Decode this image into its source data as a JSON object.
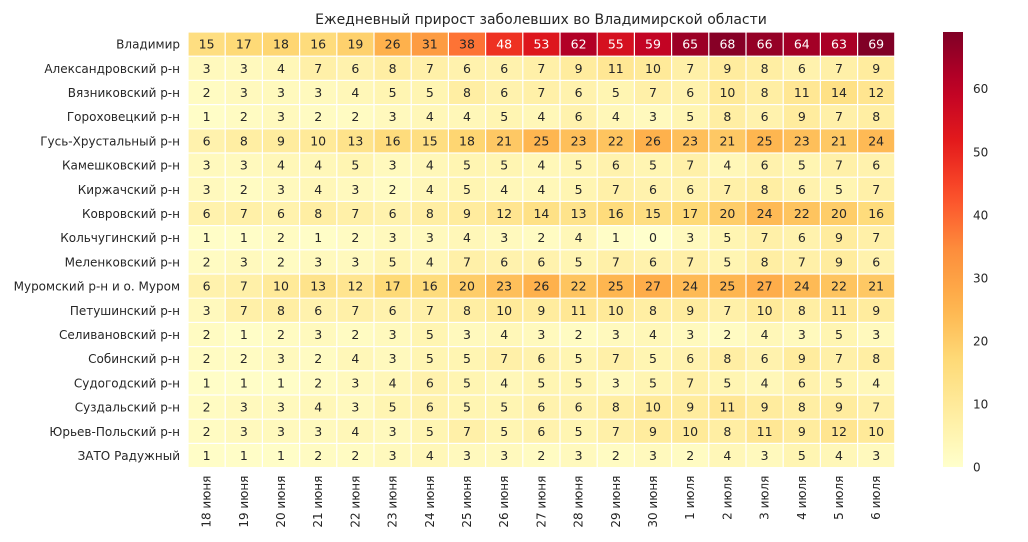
{
  "chart_data": {
    "type": "heatmap",
    "title": "Ежедневный прирост заболевших во Владимирской области",
    "xlabel": "",
    "ylabel": "",
    "columns": [
      "18 июня",
      "19 июня",
      "20 июня",
      "21 июня",
      "22 июня",
      "23 июня",
      "24 июня",
      "25 июня",
      "26 июня",
      "27 июня",
      "28 июня",
      "29 июня",
      "30 июня",
      "1 июля",
      "2 июля",
      "3 июля",
      "4 июля",
      "5 июля",
      "6 июля"
    ],
    "rows": [
      "Владимир",
      "Александровский р-н",
      "Вязниковский р-н",
      "Гороховецкий р-н",
      "Гусь-Хрустальный р-н",
      "Камешковский р-н",
      "Киржачский р-н",
      "Ковровский р-н",
      "Кольчугинский р-н",
      "Меленковский р-н",
      "Муромский р-н и о. Муром",
      "Петушинский р-н",
      "Селивановский р-н",
      "Собинский р-н",
      "Судогодский р-н",
      "Суздальский р-н",
      "Юрьев-Польский р-н",
      "ЗАТО Радужный"
    ],
    "values": [
      [
        15,
        17,
        18,
        16,
        19,
        26,
        31,
        38,
        48,
        53,
        62,
        55,
        59,
        65,
        68,
        66,
        64,
        63,
        69
      ],
      [
        3,
        3,
        4,
        7,
        6,
        8,
        7,
        6,
        6,
        7,
        9,
        11,
        10,
        7,
        9,
        8,
        6,
        7,
        9
      ],
      [
        2,
        3,
        3,
        3,
        4,
        5,
        5,
        8,
        6,
        7,
        6,
        5,
        7,
        6,
        10,
        8,
        11,
        14,
        12
      ],
      [
        1,
        2,
        3,
        2,
        2,
        3,
        4,
        4,
        5,
        4,
        6,
        4,
        3,
        5,
        8,
        6,
        9,
        7,
        8
      ],
      [
        6,
        8,
        9,
        10,
        13,
        16,
        15,
        18,
        21,
        25,
        23,
        22,
        26,
        23,
        21,
        25,
        23,
        21,
        24
      ],
      [
        3,
        3,
        4,
        4,
        5,
        3,
        4,
        5,
        5,
        4,
        5,
        6,
        5,
        7,
        4,
        6,
        5,
        7,
        6
      ],
      [
        3,
        2,
        3,
        4,
        3,
        2,
        4,
        5,
        4,
        4,
        5,
        7,
        6,
        6,
        7,
        8,
        6,
        5,
        7
      ],
      [
        6,
        7,
        6,
        8,
        7,
        6,
        8,
        9,
        12,
        14,
        13,
        16,
        15,
        17,
        20,
        24,
        22,
        20,
        16
      ],
      [
        1,
        1,
        2,
        1,
        2,
        3,
        3,
        4,
        3,
        2,
        4,
        1,
        0,
        3,
        5,
        7,
        6,
        9,
        7
      ],
      [
        2,
        3,
        2,
        3,
        3,
        5,
        4,
        7,
        6,
        6,
        5,
        7,
        6,
        7,
        5,
        8,
        7,
        9,
        6
      ],
      [
        6,
        7,
        10,
        13,
        12,
        17,
        16,
        20,
        23,
        26,
        22,
        25,
        27,
        24,
        25,
        27,
        24,
        22,
        21
      ],
      [
        3,
        7,
        8,
        6,
        7,
        6,
        7,
        8,
        10,
        9,
        11,
        10,
        8,
        9,
        7,
        10,
        8,
        11,
        9
      ],
      [
        2,
        1,
        2,
        3,
        2,
        3,
        5,
        3,
        4,
        3,
        2,
        3,
        4,
        3,
        2,
        4,
        3,
        5,
        3
      ],
      [
        2,
        2,
        3,
        2,
        4,
        3,
        5,
        5,
        7,
        6,
        5,
        7,
        5,
        6,
        8,
        6,
        9,
        7,
        8
      ],
      [
        1,
        1,
        1,
        2,
        3,
        4,
        6,
        5,
        4,
        5,
        5,
        3,
        5,
        7,
        5,
        4,
        6,
        5,
        4
      ],
      [
        2,
        3,
        3,
        4,
        3,
        5,
        6,
        5,
        5,
        6,
        6,
        8,
        10,
        9,
        11,
        9,
        8,
        9,
        7
      ],
      [
        2,
        3,
        3,
        3,
        4,
        3,
        5,
        7,
        5,
        6,
        5,
        7,
        9,
        10,
        8,
        11,
        9,
        12,
        10
      ],
      [
        1,
        1,
        1,
        2,
        2,
        3,
        4,
        3,
        3,
        2,
        3,
        2,
        3,
        2,
        4,
        3,
        5,
        4,
        3
      ]
    ],
    "colorbar": {
      "min": 0,
      "max": 69,
      "ticks": [
        0,
        10,
        20,
        30,
        40,
        50,
        60
      ],
      "colormap": "YlOrRd"
    },
    "grid": false,
    "legend": "colorbar-right"
  }
}
